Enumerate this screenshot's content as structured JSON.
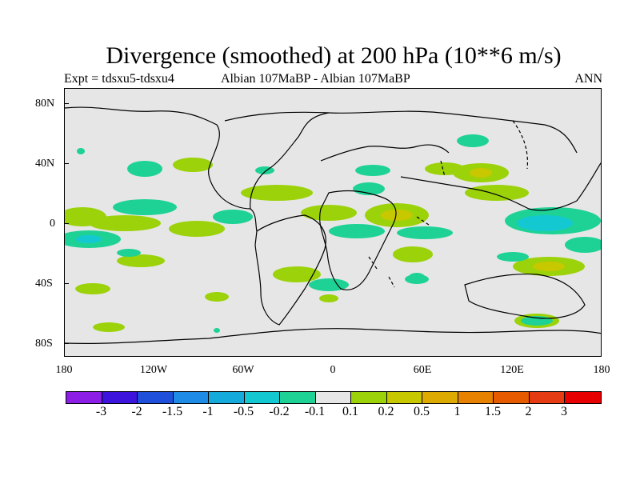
{
  "title": "Divergence (smoothed) at 200 hPa (10**6 m/s)",
  "subtitle_left": "Expt = tdsxu5-tdsxu4",
  "subtitle_center": "Albian   107MaBP - Albian   107MaBP",
  "subtitle_right": "ANN",
  "lat_labels": [
    "80N",
    "40N",
    "0",
    "40S",
    "80S"
  ],
  "lon_labels": [
    "180",
    "120W",
    "60W",
    "0",
    "60E",
    "120E",
    "180"
  ],
  "colorbar": {
    "colors": [
      "#8c1ee6",
      "#3c14dc",
      "#1e50dc",
      "#1e8ce6",
      "#14aadc",
      "#14c8d2",
      "#1ed296",
      "#e6e6e6",
      "#9bd20a",
      "#c8c800",
      "#dcaa00",
      "#e68200",
      "#e65a00",
      "#e63c14",
      "#e60000"
    ],
    "labels": [
      "-3",
      "-2",
      "-1.5",
      "-1",
      "-0.5",
      "-0.2",
      "-0.1",
      "0.1",
      "0.2",
      "0.5",
      "1",
      "1.5",
      "2",
      "3"
    ]
  },
  "colors": {
    "positive_fill": "#9bd20a",
    "positive_core": "#c8c800",
    "negative_fill": "#1ed296",
    "negative_core": "#14c8d2",
    "background": "#e6e6e6"
  }
}
